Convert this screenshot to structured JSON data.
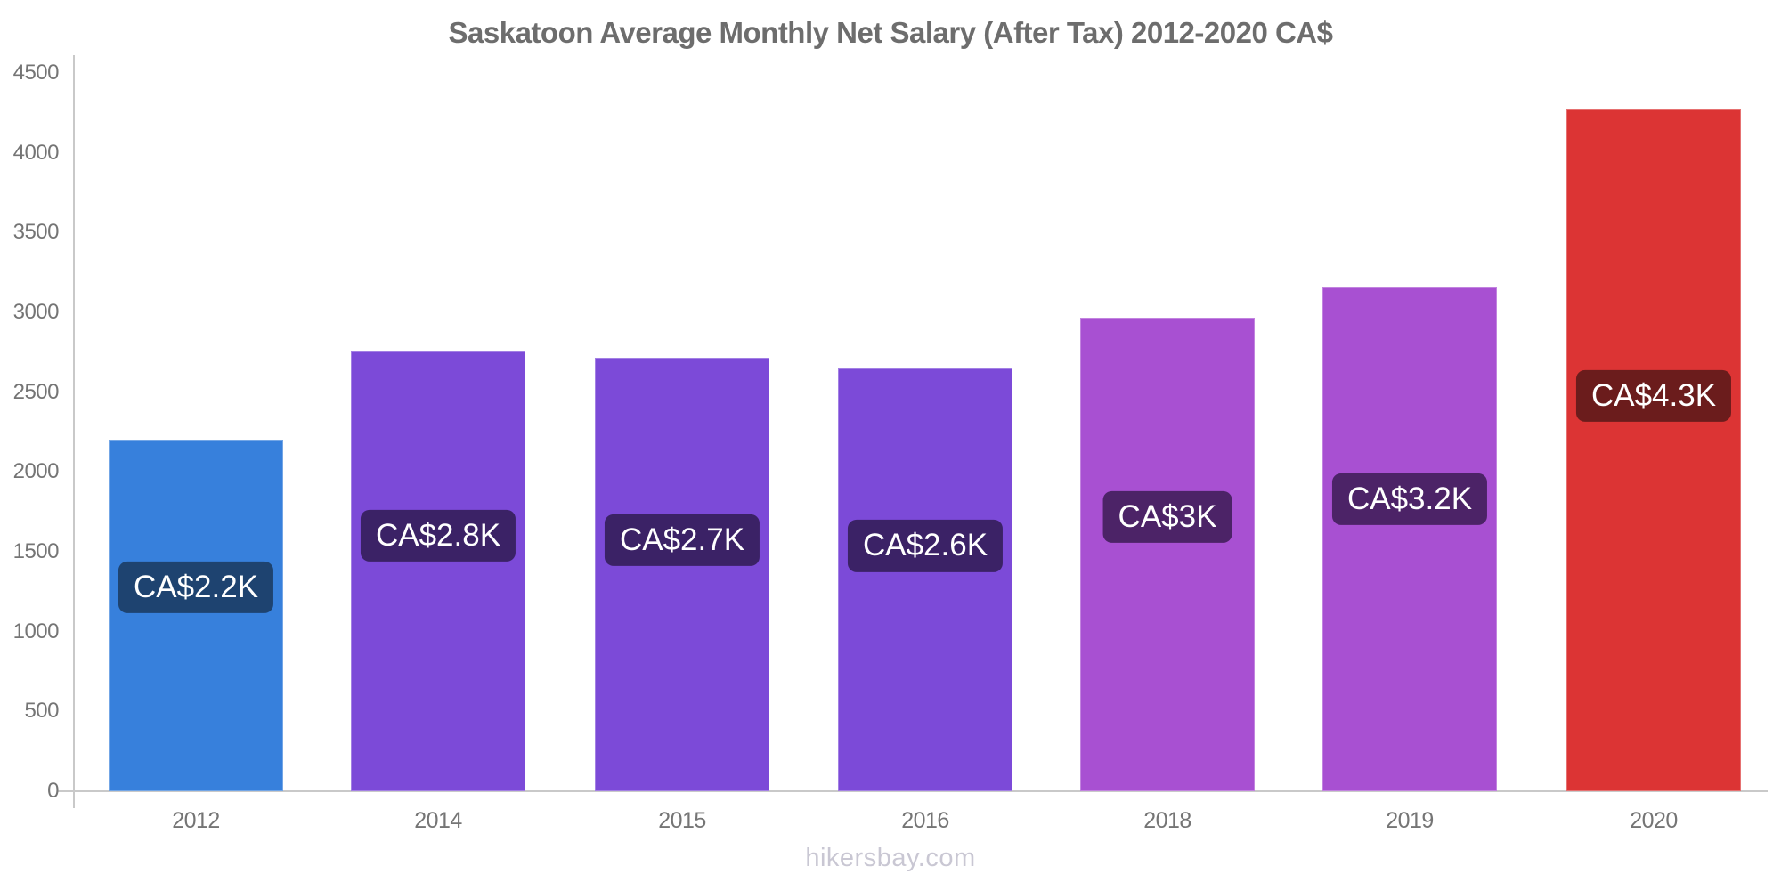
{
  "page": {
    "title": "Saskatoon Average Monthly Net Salary (After Tax) 2012-2020 CA$",
    "footer": "hikersbay.com"
  },
  "chart_data": {
    "type": "bar",
    "title": "Saskatoon Average Monthly Net Salary (After Tax) 2012-2020 CA$",
    "xlabel": "",
    "ylabel": "",
    "currency": "CA$",
    "categories": [
      "2012",
      "2014",
      "2015",
      "2016",
      "2018",
      "2019",
      "2020"
    ],
    "values": [
      2200,
      2760,
      2715,
      2650,
      2965,
      3155,
      4270
    ],
    "bar_labels": [
      "CA$2.2K",
      "CA$2.8K",
      "CA$2.7K",
      "CA$2.6K",
      "CA$3K",
      "CA$3.2K",
      "CA$4.3K"
    ],
    "bar_colors": [
      "#3780dc",
      "#7c4ad8",
      "#7c4ad8",
      "#7c4ad8",
      "#a850d2",
      "#a850d2",
      "#dc3434"
    ],
    "label_bg_colors": [
      "#1e4370",
      "#3b2266",
      "#3b2266",
      "#3b2266",
      "#4c2367",
      "#4c2367",
      "#6b1c1c"
    ],
    "ylim": [
      0,
      4500
    ],
    "yticks": [
      0,
      500,
      1000,
      1500,
      2000,
      2500,
      3000,
      3500,
      4000,
      4500
    ],
    "grid": false,
    "legend": false,
    "axis_color": "#c9c9c9",
    "tick_label_color": "#757575",
    "title_color": "#6d6d6d",
    "watermark": "hikersbay.com"
  }
}
